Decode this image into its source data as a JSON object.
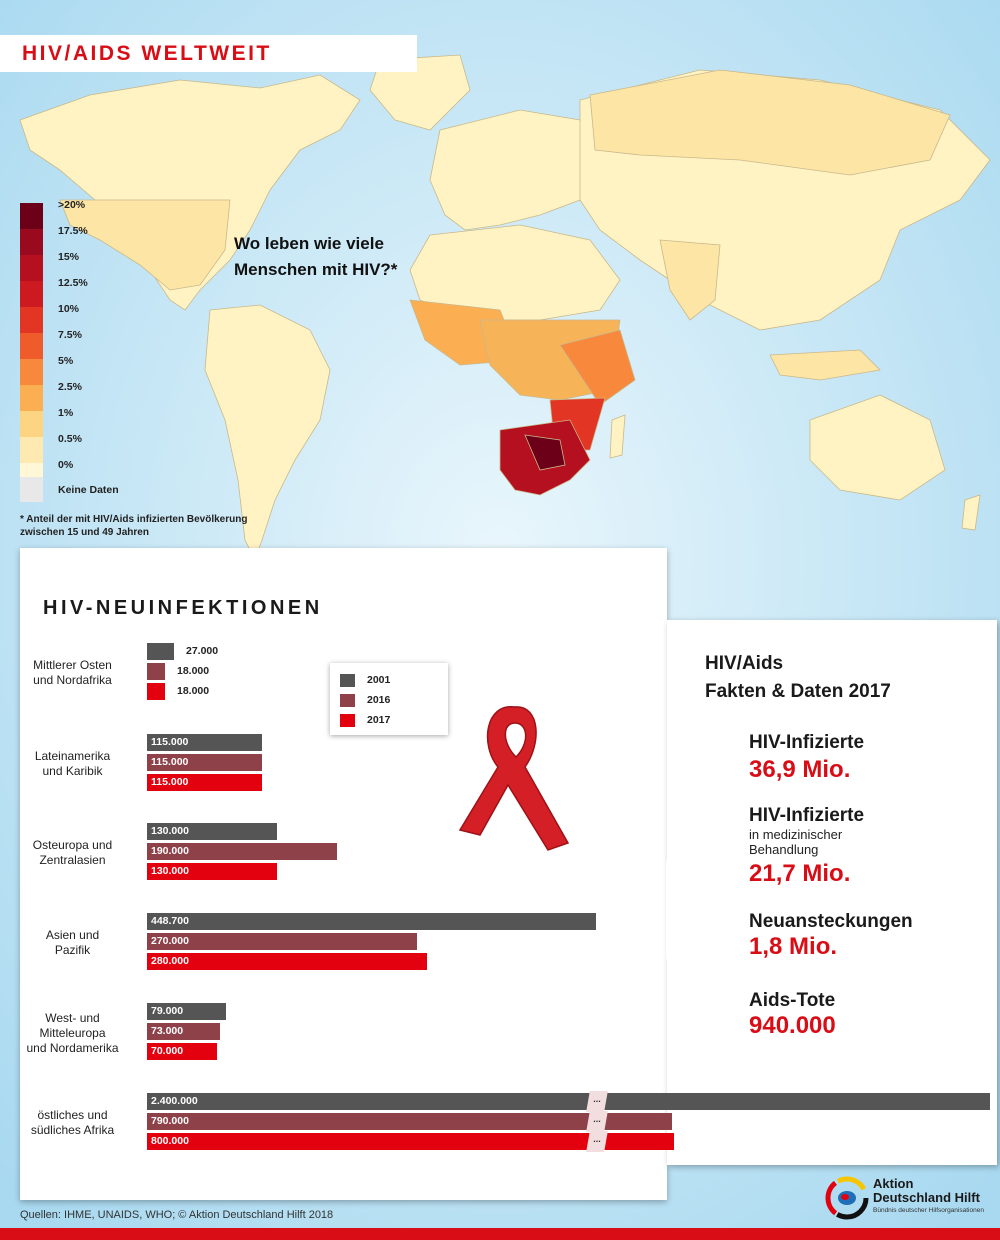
{
  "header": {
    "title": "HIV/AIDS WELTWEIT"
  },
  "map": {
    "question": "Wo leben wie viele Menschen mit HIV?*",
    "legend": [
      {
        "label": ">20%",
        "color": "#6b0018"
      },
      {
        "label": "17.5%",
        "color": "#9a0a1e"
      },
      {
        "label": "15%",
        "color": "#b5101f"
      },
      {
        "label": "12.5%",
        "color": "#cc1a20"
      },
      {
        "label": "10%",
        "color": "#e23524"
      },
      {
        "label": "7.5%",
        "color": "#f05b2c"
      },
      {
        "label": "5%",
        "color": "#f7883c"
      },
      {
        "label": "2.5%",
        "color": "#fbae52"
      },
      {
        "label": "1%",
        "color": "#fdd582"
      },
      {
        "label": "0.5%",
        "color": "#fee9b0"
      },
      {
        "label": "0%",
        "color": "#fff7d6"
      }
    ],
    "nodata_label": "Keine Daten",
    "footnote": "* Anteil der mit HIV/Aids infizierten Bevölkerung zwischen 15 und 49 Jahren"
  },
  "chart_data": {
    "type": "bar",
    "title": "HIV-NEUINFEKTIONEN",
    "orientation": "horizontal",
    "categories": [
      "Mittlerer Osten und Nordafrika",
      "Lateinamerika und Karibik",
      "Osteuropa und Zentralasien",
      "Asien und Pazifik",
      "West- und Mitteleuropa und Nordamerika",
      "östliches und südliches Afrika"
    ],
    "category_lines": [
      [
        "Mittlerer Osten",
        "und Nordafrika"
      ],
      [
        "Lateinamerika",
        "und Karibik"
      ],
      [
        "Osteuropa und",
        "Zentralasien"
      ],
      [
        "Asien und",
        "Pazifik"
      ],
      [
        "West- und",
        "Mitteleuropa",
        "und Nordamerika"
      ],
      [
        "östliches und",
        "südliches Afrika"
      ]
    ],
    "series": [
      {
        "name": "2001",
        "color": "#555555",
        "values": [
          27000,
          115000,
          130000,
          448700,
          79000,
          2400000
        ],
        "labels": [
          "27.000",
          "115.000",
          "130.000",
          "448.700",
          "79.000",
          "2.400.000"
        ]
      },
      {
        "name": "2016",
        "color": "#8e4149",
        "values": [
          18000,
          115000,
          190000,
          270000,
          73000,
          790000
        ],
        "labels": [
          "18.000",
          "115.000",
          "190.000",
          "270.000",
          "73.000",
          "790.000"
        ]
      },
      {
        "name": "2017",
        "color": "#e3000f",
        "values": [
          18000,
          115000,
          130000,
          280000,
          70000,
          800000
        ],
        "labels": [
          "18.000",
          "115.000",
          "130.000",
          "280.000",
          "70.000",
          "800.000"
        ]
      }
    ],
    "break_marker": "...",
    "break_category": "östliches und südliches Afrika",
    "legend_position": "top-right"
  },
  "facts": {
    "title_line1": "HIV/Aids",
    "title_line2": "Fakten & Daten 2017",
    "items": [
      {
        "label": "HIV-Infizierte",
        "sub": "",
        "value": "36,9 Mio."
      },
      {
        "label": "HIV-Infizierte",
        "sub": "in medizinischer Behandlung",
        "value": "21,7 Mio."
      },
      {
        "label": "Neuansteckungen",
        "sub": "",
        "value": "1,8 Mio."
      },
      {
        "label": "Aids-Tote",
        "sub": "",
        "value": "940.000"
      }
    ]
  },
  "footer": {
    "sources": "Quellen: IHME, UNAIDS, WHO; © Aktion Deutschland Hilft 2018",
    "logo_line1": "Aktion",
    "logo_line2": "Deutschland Hilft",
    "logo_tagline": "Bündnis deutscher Hilfsorganisationen"
  },
  "colors": {
    "accent": "#d90d16",
    "ocean": "#bfe2f3"
  }
}
